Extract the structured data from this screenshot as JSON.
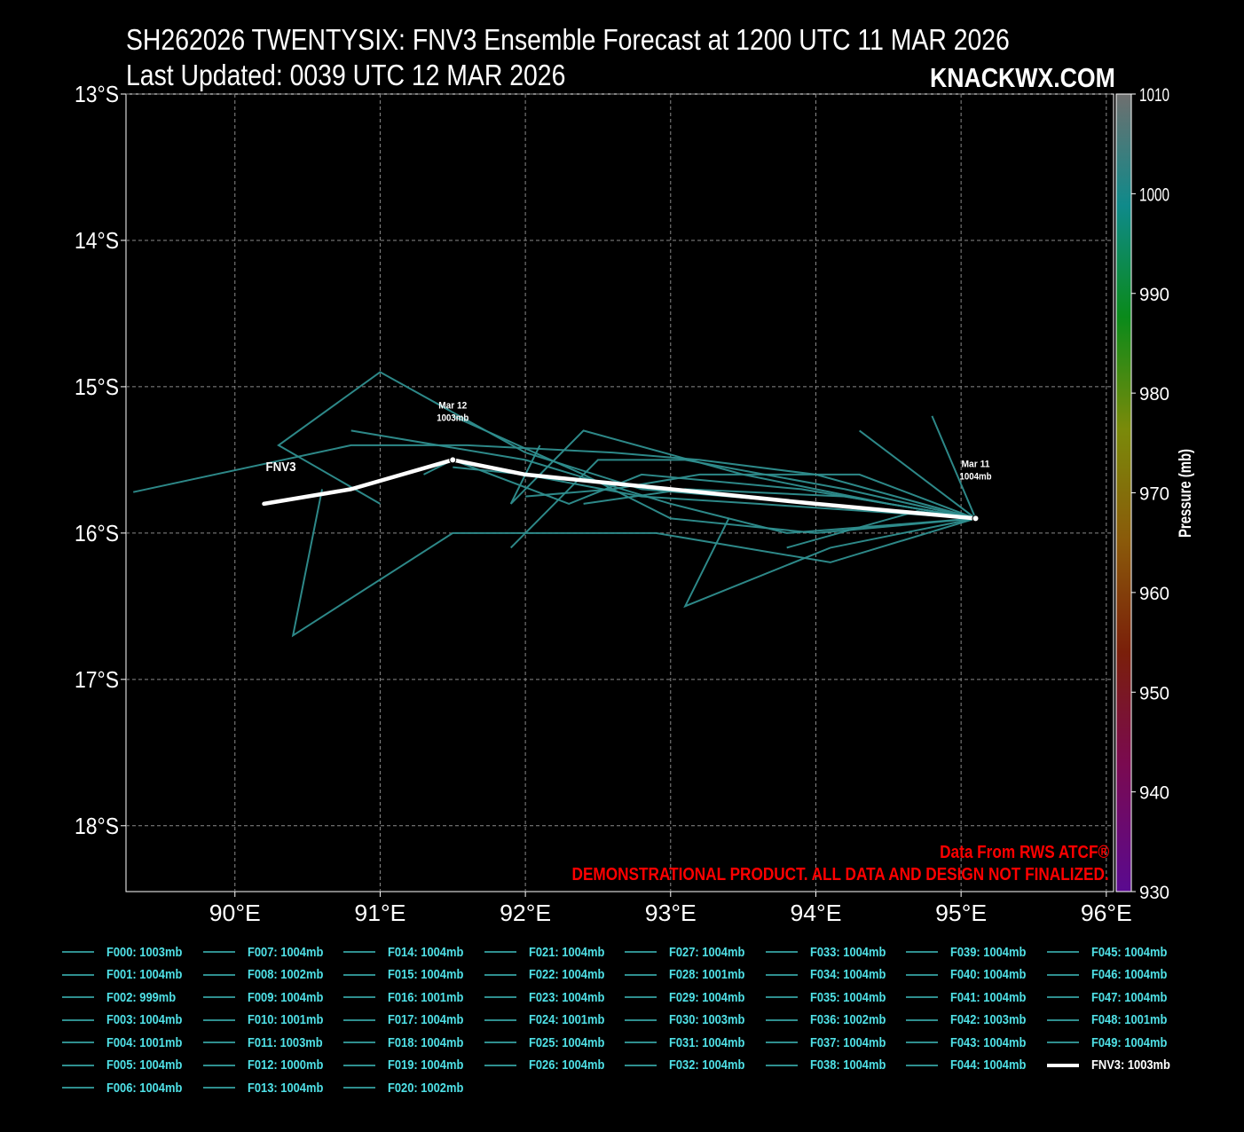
{
  "header": {
    "title": "SH262026 TWENTYSIX: FNV3 Ensemble Forecast at 1200 UTC 11 MAR 2026",
    "updated": "Last Updated: 0039 UTC 12 MAR 2026",
    "brand": "KNACKWX.COM"
  },
  "notice": {
    "line1": "Data From RWS ATCF®",
    "line2": "DEMONSTRATIONAL PRODUCT. ALL DATA AND DESIGN NOT FINALIZED."
  },
  "colors": {
    "background": "#000000",
    "member_track": "#2f8f8f",
    "main_track": "#ffffff",
    "legend_text": "#4fe0e6",
    "notice": "#ff0000",
    "grid": "#8a8a8a"
  },
  "chart_data": {
    "type": "line",
    "x_ticks": [
      "90°E",
      "91°E",
      "92°E",
      "93°E",
      "94°E",
      "95°E",
      "96°E"
    ],
    "y_ticks": [
      "13°S",
      "14°S",
      "15°S",
      "16°S",
      "17°S",
      "18°S"
    ],
    "xlim": [
      89.25,
      96.05
    ],
    "ylim": [
      -18.45,
      -13.0
    ],
    "grid": true,
    "colorbar": {
      "label": "Pressure (mb)",
      "ticks": [
        "1010",
        "1000",
        "990",
        "980",
        "970",
        "960",
        "950",
        "940",
        "930"
      ],
      "range": [
        930,
        1010
      ]
    },
    "main_track": {
      "name": "FNV3",
      "label": "FNV3",
      "points": [
        [
          95.1,
          -15.9
        ],
        [
          94.0,
          -15.8
        ],
        [
          93.0,
          -15.7
        ],
        [
          92.0,
          -15.6
        ],
        [
          91.5,
          -15.5
        ],
        [
          90.8,
          -15.7
        ],
        [
          90.2,
          -15.8
        ]
      ]
    },
    "annotations": [
      {
        "date": "Mar 11",
        "pressure": "1004mb",
        "lon": 95.1,
        "lat": -15.9
      },
      {
        "date": "Mar 12",
        "pressure": "1003mb",
        "lon": 91.5,
        "lat": -15.5
      }
    ],
    "member_tracks": [
      [
        [
          95.1,
          -15.9
        ],
        [
          94.0,
          -15.6
        ],
        [
          93.2,
          -15.5
        ],
        [
          92.6,
          -15.45
        ],
        [
          91.6,
          -15.4
        ],
        [
          90.8,
          -15.4
        ],
        [
          89.3,
          -15.72
        ]
      ],
      [
        [
          95.1,
          -15.9
        ],
        [
          94.3,
          -15.3
        ]
      ],
      [
        [
          95.1,
          -15.9
        ],
        [
          94.8,
          -15.2
        ]
      ],
      [
        [
          95.1,
          -15.9
        ],
        [
          94.1,
          -16.1
        ],
        [
          93.1,
          -16.5
        ],
        [
          93.4,
          -15.9
        ]
      ],
      [
        [
          95.1,
          -15.9
        ],
        [
          94.1,
          -16.2
        ],
        [
          92.9,
          -16.0
        ],
        [
          91.5,
          -16.0
        ],
        [
          90.4,
          -16.7
        ],
        [
          90.6,
          -15.7
        ]
      ],
      [
        [
          95.1,
          -15.9
        ],
        [
          94.0,
          -15.8
        ],
        [
          92.8,
          -15.7
        ],
        [
          92.0,
          -15.45
        ],
        [
          91.0,
          -14.9
        ],
        [
          90.3,
          -15.4
        ],
        [
          91.0,
          -15.8
        ]
      ],
      [
        [
          95.1,
          -15.9
        ],
        [
          93.8,
          -16.0
        ],
        [
          93.0,
          -15.8
        ],
        [
          92.0,
          -15.5
        ],
        [
          90.8,
          -15.3
        ]
      ],
      [
        [
          95.1,
          -15.9
        ],
        [
          94.2,
          -15.7
        ],
        [
          93.1,
          -15.5
        ],
        [
          92.5,
          -15.5
        ],
        [
          91.9,
          -16.1
        ]
      ],
      [
        [
          95.1,
          -15.9
        ],
        [
          94.5,
          -15.8
        ],
        [
          93.5,
          -15.6
        ],
        [
          92.4,
          -15.3
        ],
        [
          91.9,
          -15.8
        ],
        [
          92.1,
          -15.4
        ]
      ],
      [
        [
          95.1,
          -15.9
        ],
        [
          93.9,
          -15.7
        ],
        [
          92.8,
          -15.6
        ],
        [
          92.3,
          -15.8
        ],
        [
          91.5,
          -15.5
        ],
        [
          91.3,
          -15.6
        ]
      ],
      [
        [
          95.1,
          -15.9
        ],
        [
          94.0,
          -16.0
        ],
        [
          93.0,
          -15.9
        ],
        [
          92.4,
          -15.6
        ],
        [
          91.5,
          -15.2
        ]
      ],
      [
        [
          95.1,
          -15.9
        ],
        [
          94.3,
          -15.6
        ],
        [
          93.2,
          -15.6
        ],
        [
          92.6,
          -15.7
        ],
        [
          92.0,
          -15.75
        ]
      ],
      [
        [
          95.1,
          -15.9
        ],
        [
          93.6,
          -15.8
        ],
        [
          92.8,
          -15.75
        ],
        [
          92.0,
          -15.6
        ],
        [
          91.5,
          -15.55
        ]
      ],
      [
        [
          95.1,
          -15.9
        ],
        [
          94.7,
          -15.85
        ],
        [
          93.8,
          -16.1
        ]
      ],
      [
        [
          95.1,
          -15.9
        ],
        [
          94.2,
          -15.75
        ],
        [
          93.1,
          -15.7
        ],
        [
          92.4,
          -15.8
        ]
      ]
    ],
    "legend": [
      "F000: 1003mb",
      "F001: 1004mb",
      "F002: 999mb",
      "F003: 1004mb",
      "F004: 1001mb",
      "F005: 1004mb",
      "F006: 1004mb",
      "F007: 1004mb",
      "F008: 1002mb",
      "F009: 1004mb",
      "F010: 1001mb",
      "F011: 1003mb",
      "F012: 1000mb",
      "F013: 1004mb",
      "F014: 1004mb",
      "F015: 1004mb",
      "F016: 1001mb",
      "F017: 1004mb",
      "F018: 1004mb",
      "F019: 1004mb",
      "F020: 1002mb",
      "F021: 1004mb",
      "F022: 1004mb",
      "F023: 1004mb",
      "F024: 1001mb",
      "F025: 1004mb",
      "F026: 1004mb",
      "F027: 1004mb",
      "F028: 1001mb",
      "F029: 1004mb",
      "F030: 1003mb",
      "F031: 1004mb",
      "F032: 1004mb",
      "F033: 1004mb",
      "F034: 1004mb",
      "F035: 1004mb",
      "F036: 1002mb",
      "F037: 1004mb",
      "F038: 1004mb",
      "F039: 1004mb",
      "F040: 1004mb",
      "F041: 1004mb",
      "F042: 1003mb",
      "F043: 1004mb",
      "F044: 1004mb",
      "F045: 1004mb",
      "F046: 1004mb",
      "F047: 1004mb",
      "F048: 1001mb",
      "F049: 1004mb",
      "FNV3: 1003mb"
    ]
  }
}
